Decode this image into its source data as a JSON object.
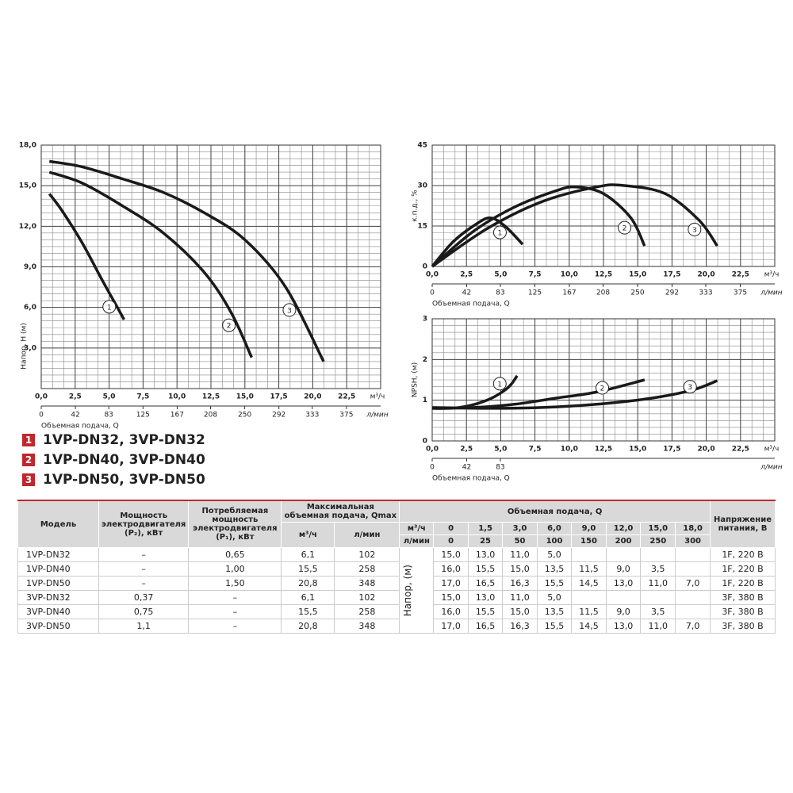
{
  "chart_data": [
    {
      "type": "line",
      "y_label": "Напор, Н (м)",
      "x_label": "Объемная подача, Q",
      "x_unit": "м³/ч",
      "x2_unit": "л/мин",
      "xlim": [
        0,
        25
      ],
      "xticks": [
        {
          "value": 0,
          "label": "0,0"
        },
        {
          "value": 2.5,
          "label": "2,5"
        },
        {
          "value": 5,
          "label": "5,0"
        },
        {
          "value": 7.5,
          "label": "7,5"
        },
        {
          "value": 10,
          "label": "10,0"
        },
        {
          "value": 12.5,
          "label": "12,5"
        },
        {
          "value": 15,
          "label": "15,0"
        },
        {
          "value": 17.5,
          "label": "17,5"
        },
        {
          "value": 20,
          "label": "20,0"
        },
        {
          "value": 22.5,
          "label": "22,5"
        }
      ],
      "x2lim": [
        0,
        417
      ],
      "x2ticks": [
        0,
        42,
        83,
        125,
        167,
        208,
        250,
        292,
        333,
        375
      ],
      "ylim": [
        0,
        18
      ],
      "yticks": [
        {
          "value": 3,
          "label": "3,0"
        },
        {
          "value": 6,
          "label": "6,0"
        },
        {
          "value": 9,
          "label": "9,0"
        },
        {
          "value": 12,
          "label": "12,0"
        },
        {
          "value": 15,
          "label": "15,0"
        },
        {
          "value": 18,
          "label": "18,0"
        }
      ],
      "grid": true,
      "series": [
        {
          "name": "1",
          "color": "#1a1a1a",
          "x": [
            0.6,
            1.5,
            3,
            4.5,
            5.5,
            6.1
          ],
          "values": [
            14.4,
            13.2,
            10.8,
            8,
            6.2,
            5.1
          ]
        },
        {
          "name": "2",
          "color": "#1a1a1a",
          "x": [
            0.6,
            3,
            6,
            9,
            12,
            14,
            15.5
          ],
          "values": [
            16,
            15.2,
            13.5,
            11.5,
            8.6,
            5.6,
            2.3
          ]
        },
        {
          "name": "3",
          "color": "#1a1a1a",
          "x": [
            0.6,
            3,
            6,
            9,
            12,
            15,
            18,
            20.8
          ],
          "values": [
            16.8,
            16.4,
            15.5,
            14.5,
            13,
            11,
            7.5,
            2
          ]
        }
      ]
    },
    {
      "type": "line",
      "y_label": "к.п.д., %",
      "x_label": "Объемная подача, Q",
      "x_unit": "м³/ч",
      "x2_unit": "л/мин",
      "xlim": [
        0,
        25
      ],
      "xticks": [
        {
          "value": 0,
          "label": "0,0"
        },
        {
          "value": 2.5,
          "label": "2,5"
        },
        {
          "value": 5,
          "label": "5,0"
        },
        {
          "value": 7.5,
          "label": "7,5"
        },
        {
          "value": 10,
          "label": "10,0"
        },
        {
          "value": 12.5,
          "label": "12,5"
        },
        {
          "value": 15,
          "label": "15,0"
        },
        {
          "value": 17.5,
          "label": "17,5"
        },
        {
          "value": 20,
          "label": "20,0"
        },
        {
          "value": 22.5,
          "label": "22,5"
        }
      ],
      "x2lim": [
        0,
        417
      ],
      "x2ticks": [
        0,
        42,
        83,
        125,
        167,
        208,
        250,
        292,
        333,
        375
      ],
      "ylim": [
        0,
        45
      ],
      "yticks": [
        0,
        15,
        30,
        45
      ],
      "grid": true,
      "series": [
        {
          "name": "1",
          "color": "#1a1a1a",
          "x": [
            0,
            1.5,
            3,
            4.2,
            5.3,
            6.6
          ],
          "values": [
            0,
            9,
            15,
            18,
            15,
            8.2
          ]
        },
        {
          "name": "2",
          "color": "#1a1a1a",
          "x": [
            0,
            3,
            6,
            9,
            10.5,
            12.5,
            14.5,
            15.5
          ],
          "values": [
            0,
            13,
            22,
            28,
            29.5,
            27,
            18,
            7.6
          ]
        },
        {
          "name": "3",
          "color": "#1a1a1a",
          "x": [
            0,
            4,
            8,
            12,
            14,
            17,
            19.5,
            20.8
          ],
          "values": [
            0,
            14,
            24,
            29.5,
            30,
            27,
            17,
            7.6
          ]
        }
      ]
    },
    {
      "type": "line",
      "y_label": "NPSH, (м)",
      "x_label": "Объемная подача, Q",
      "x_unit": "м³/ч",
      "x2_unit": "л/мин",
      "xlim": [
        0,
        25
      ],
      "xticks": [
        {
          "value": 0,
          "label": "0,0"
        },
        {
          "value": 2.5,
          "label": "2,5"
        },
        {
          "value": 5,
          "label": "5,0"
        },
        {
          "value": 7.5,
          "label": "7,5"
        },
        {
          "value": 10,
          "label": "10,0"
        },
        {
          "value": 12.5,
          "label": "12,5"
        },
        {
          "value": 15,
          "label": "15,0"
        },
        {
          "value": 17.5,
          "label": "17,5"
        },
        {
          "value": 20,
          "label": "20,0"
        },
        {
          "value": 22.5,
          "label": "22,5"
        }
      ],
      "x2lim": [
        0,
        417
      ],
      "x2ticks": [
        0,
        42,
        83
      ],
      "ylim": [
        0,
        3
      ],
      "yticks": [
        0,
        1,
        2,
        3
      ],
      "grid": true,
      "series": [
        {
          "name": "1",
          "color": "#1a1a1a",
          "x": [
            0,
            2,
            4,
            5.5,
            6.2
          ],
          "values": [
            0.8,
            0.82,
            1,
            1.3,
            1.6
          ]
        },
        {
          "name": "2",
          "color": "#1a1a1a",
          "x": [
            0,
            3,
            6,
            9,
            12,
            15.5
          ],
          "values": [
            0.8,
            0.82,
            0.9,
            1.05,
            1.2,
            1.5
          ]
        },
        {
          "name": "3",
          "color": "#1a1a1a",
          "x": [
            0,
            4,
            8,
            12,
            16,
            19,
            20.8
          ],
          "values": [
            0.82,
            0.8,
            0.82,
            0.9,
            1.05,
            1.25,
            1.48
          ]
        }
      ]
    }
  ],
  "legend": [
    {
      "number": "1",
      "models": "1VP-DN32, 3VP-DN32"
    },
    {
      "number": "2",
      "models": "1VP-DN40, 3VP-DN40"
    },
    {
      "number": "3",
      "models": "1VP-DN50, 3VP-DN50"
    }
  ],
  "table": {
    "headers": {
      "model": "Модель",
      "p2": "Мощность электродвигателя (P₂), кВт",
      "p1": "Потребляемая мощность электродвигателя (P₁), кВт",
      "qmax": "Максимальная объемная подача, Qmax",
      "qmax_m3h": "м³/ч",
      "qmax_lmin": "л/мин",
      "flow": "Объемная подача, Q",
      "flow_m3h": "м³/ч",
      "flow_lmin": "л/мин",
      "head": "Напор, (м)",
      "voltage": "Напряжение питания, В"
    },
    "flow_m3h": [
      "0",
      "1,5",
      "3,0",
      "6,0",
      "9,0",
      "12,0",
      "15,0",
      "18,0"
    ],
    "flow_lmin": [
      "0",
      "25",
      "50",
      "100",
      "150",
      "200",
      "250",
      "300"
    ],
    "rows": [
      {
        "model": "1VP-DN32",
        "p2": "–",
        "p1": "0,65",
        "qmax_m3h": "6,1",
        "qmax_lmin": "102",
        "head": [
          "15,0",
          "13,0",
          "11,0",
          "5,0"
        ],
        "voltage": "1F, 220 В"
      },
      {
        "model": "1VP-DN40",
        "p2": "–",
        "p1": "1,00",
        "qmax_m3h": "15,5",
        "qmax_lmin": "258",
        "head": [
          "16,0",
          "15,5",
          "15,0",
          "13,5",
          "11,5",
          "9,0",
          "3,5"
        ],
        "voltage": "1F, 220 В"
      },
      {
        "model": "1VP-DN50",
        "p2": "–",
        "p1": "1,50",
        "qmax_m3h": "20,8",
        "qmax_lmin": "348",
        "head": [
          "17,0",
          "16,5",
          "16,3",
          "15,5",
          "14,5",
          "13,0",
          "11,0",
          "7,0"
        ],
        "voltage": "1F, 220 В"
      },
      {
        "model": "3VP-DN32",
        "p2": "0,37",
        "p1": "–",
        "qmax_m3h": "6,1",
        "qmax_lmin": "102",
        "head": [
          "15,0",
          "13,0",
          "11,0",
          "5,0"
        ],
        "voltage": "3F, 380 В"
      },
      {
        "model": "3VP-DN40",
        "p2": "0,75",
        "p1": "–",
        "qmax_m3h": "15,5",
        "qmax_lmin": "258",
        "head": [
          "16,0",
          "15,5",
          "15,0",
          "13,5",
          "11,5",
          "9,0",
          "3,5"
        ],
        "voltage": "3F, 380 В"
      },
      {
        "model": "3VP-DN50",
        "p2": "1,1",
        "p1": "–",
        "qmax_m3h": "20,8",
        "qmax_lmin": "348",
        "head": [
          "17,0",
          "16,5",
          "16,3",
          "15,5",
          "14,5",
          "13,0",
          "11,0",
          "7,0"
        ],
        "voltage": "3F, 380 В"
      }
    ]
  }
}
